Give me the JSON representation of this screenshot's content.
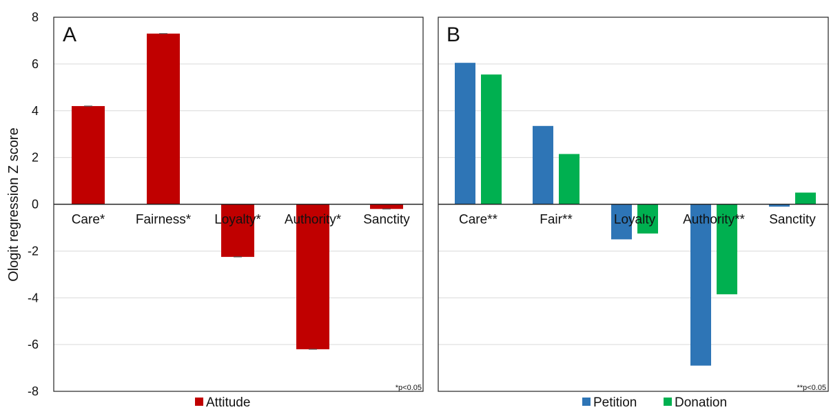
{
  "chart_data": [
    {
      "type": "bar",
      "panel": "A",
      "ylabel": "Ologit regression Z score",
      "ylim": [
        -8,
        8
      ],
      "yticks": [
        8,
        6,
        4,
        2,
        0,
        -2,
        -4,
        -6,
        -8
      ],
      "grid": true,
      "categories": [
        "Care*",
        "Fairness*",
        "Loyalty*",
        "Authority*",
        "Sanctity"
      ],
      "series": [
        {
          "name": "Attitude",
          "color": "#c00000",
          "values": [
            4.2,
            7.3,
            -2.25,
            -6.2,
            -0.2
          ]
        }
      ],
      "note": "*p<0.05",
      "legend_position": "bottom"
    },
    {
      "type": "bar",
      "panel": "B",
      "ylim": [
        -8,
        8
      ],
      "grid": true,
      "categories": [
        "Care**",
        "Fair**",
        "Loyalty",
        "Authority**",
        "Sanctity"
      ],
      "series": [
        {
          "name": "Petition",
          "color": "#2e75b6",
          "values": [
            6.05,
            3.35,
            -1.5,
            -6.9,
            -0.1
          ]
        },
        {
          "name": "Donation",
          "color": "#00b050",
          "values": [
            5.55,
            2.15,
            -1.25,
            -3.85,
            0.5
          ]
        }
      ],
      "note": "**p<0.05",
      "legend_position": "bottom"
    }
  ]
}
